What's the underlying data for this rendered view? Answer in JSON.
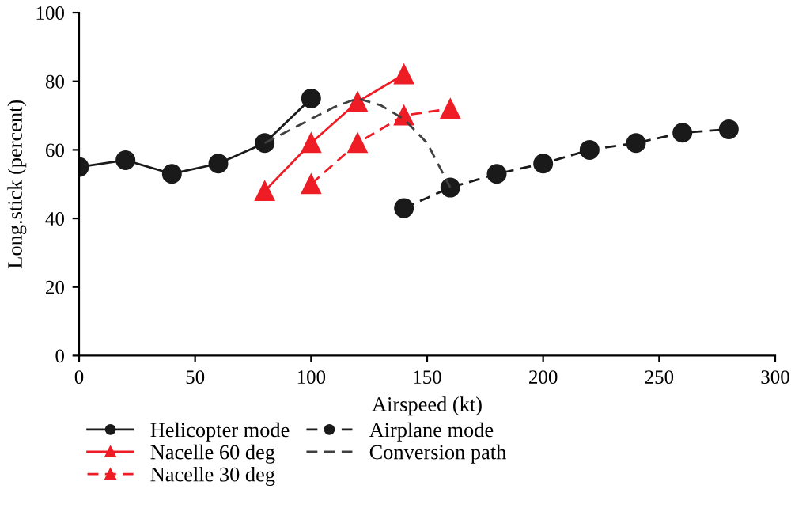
{
  "chart_data": {
    "type": "line",
    "xlabel": "Airspeed (kt)",
    "ylabel": "Long.stick (percent)",
    "xlim": [
      0,
      300
    ],
    "xticks": [
      0,
      50,
      100,
      150,
      200,
      250,
      300
    ],
    "ylim": [
      0,
      100
    ],
    "yticks": [
      0,
      20,
      40,
      60,
      80,
      100
    ],
    "grid": false,
    "legend": "bottom",
    "series": [
      {
        "name": "Helicopter mode",
        "color": "#1a1a1a",
        "marker": "circle",
        "line_style": "solid",
        "x": [
          0,
          20,
          40,
          60,
          80,
          100
        ],
        "values": [
          55,
          57,
          53,
          56,
          62,
          75
        ]
      },
      {
        "name": "Nacelle 60 deg",
        "color": "#ee1c25",
        "marker": "triangle",
        "line_style": "solid",
        "x": [
          80,
          100,
          120,
          140
        ],
        "values": [
          48,
          62,
          74,
          82
        ]
      },
      {
        "name": "Nacelle 30 deg",
        "color": "#ee1c25",
        "marker": "triangle",
        "line_style": "dashed",
        "x": [
          100,
          120,
          140,
          160
        ],
        "values": [
          50,
          62,
          70,
          72
        ]
      },
      {
        "name": "Airplane mode",
        "color": "#1a1a1a",
        "marker": "circle",
        "line_style": "dashed",
        "x": [
          140,
          160,
          180,
          200,
          220,
          240,
          260,
          280
        ],
        "values": [
          43,
          49,
          53,
          56,
          60,
          62,
          65,
          66
        ]
      },
      {
        "name": "Conversion path",
        "color": "#404040",
        "marker": "none",
        "line_style": "dashed",
        "x": [
          80,
          100,
          110,
          120,
          130,
          140,
          150,
          160
        ],
        "values": [
          62,
          69,
          72.5,
          75,
          73,
          69,
          62,
          49
        ]
      }
    ]
  }
}
